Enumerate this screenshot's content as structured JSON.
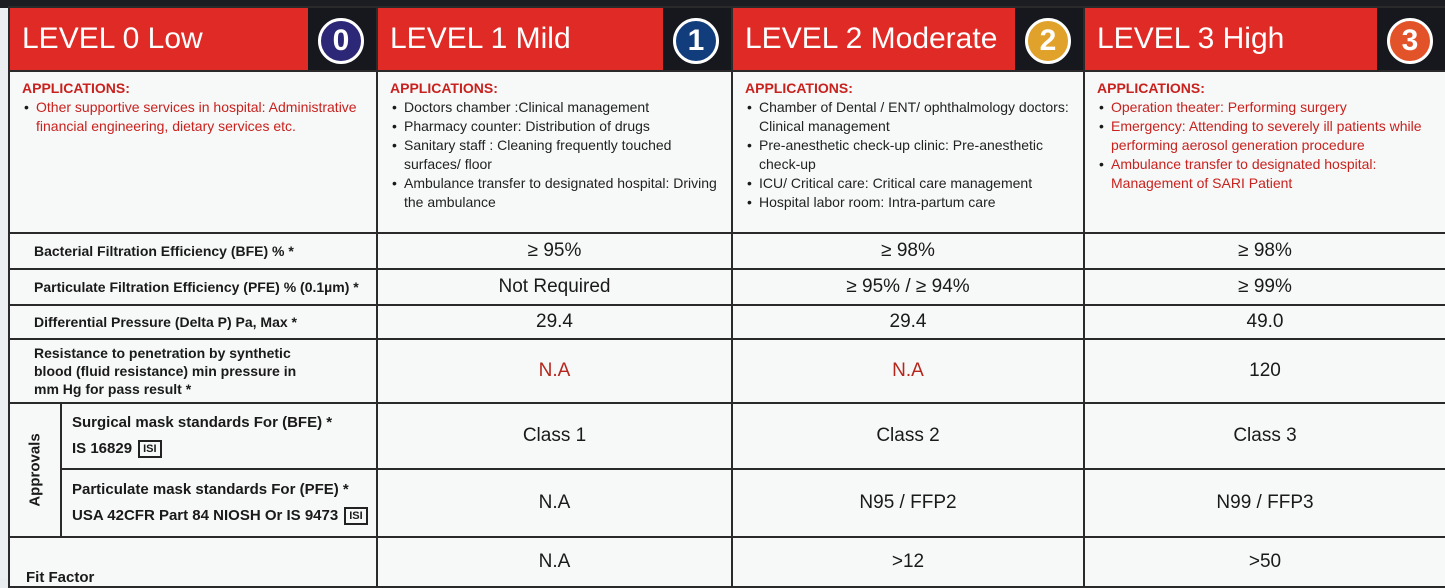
{
  "levels": [
    {
      "title": "LEVEL 0 Low",
      "badge": "0"
    },
    {
      "title": "LEVEL 1 Mild",
      "badge": "1"
    },
    {
      "title": "LEVEL 2  Moderate",
      "badge": "2"
    },
    {
      "title": "LEVEL 3 High",
      "badge": "3"
    }
  ],
  "applications_label": "APPLICATIONS:",
  "applications": [
    [
      "Other supportive services in hospital: Administrative financial engineering, dietary services etc."
    ],
    [
      "Doctors chamber :Clinical management",
      "Pharmacy counter: Distribution of drugs",
      "Sanitary staff : Cleaning frequently touched surfaces/ floor",
      "Ambulance transfer to designated hospital: Driving the ambulance"
    ],
    [
      "Chamber of Dental / ENT/ ophthalmology doctors: Clinical management",
      "Pre-anesthetic check-up clinic: Pre-anesthetic check-up",
      "ICU/ Critical care: Critical care management",
      "Hospital labor room: Intra-partum care"
    ],
    [
      "Operation theater: Performing surgery",
      "Emergency: Attending to severely ill patients while performing aerosol generation procedure",
      "Ambulance transfer to designated hospital: Management of SARI Patient"
    ]
  ],
  "rows": {
    "bfe": {
      "label": "Bacterial Filtration Efficiency (BFE) % *",
      "values": [
        "≥ 95%",
        "≥ 98%",
        "≥ 98%"
      ]
    },
    "pfe": {
      "label": "Particulate Filtration Efficiency (PFE) % (0.1µm) *",
      "values": [
        "Not Required",
        "≥ 95% / ≥ 94%",
        "≥ 99%"
      ]
    },
    "dp": {
      "label": "Differential Pressure (Delta P) Pa, Max *",
      "values": [
        "29.4",
        "29.4",
        "49.0"
      ]
    },
    "fluid": {
      "label": "Resistance to penetration by synthetic blood (fluid resistance) min pressure in mm Hg for pass result *",
      "values": [
        "N.A",
        "N.A",
        "120"
      ]
    }
  },
  "approvals": {
    "label": "Approvals",
    "surgical": {
      "label": "Surgical mask standards For (BFE) *",
      "standard": "IS 16829",
      "mark": "ISI",
      "values": [
        "Class 1",
        "Class 2",
        "Class 3"
      ]
    },
    "particulate": {
      "label": "Particulate mask standards For (PFE) *",
      "standard": "USA 42CFR Part 84 NIOSH Or IS 9473",
      "mark": "ISI",
      "values": [
        "N.A",
        "N95 / FFP2",
        "N99 / FFP3"
      ]
    }
  },
  "fit_factor": {
    "label": "Fit Factor",
    "values": [
      "N.A",
      ">12",
      ">50"
    ]
  }
}
